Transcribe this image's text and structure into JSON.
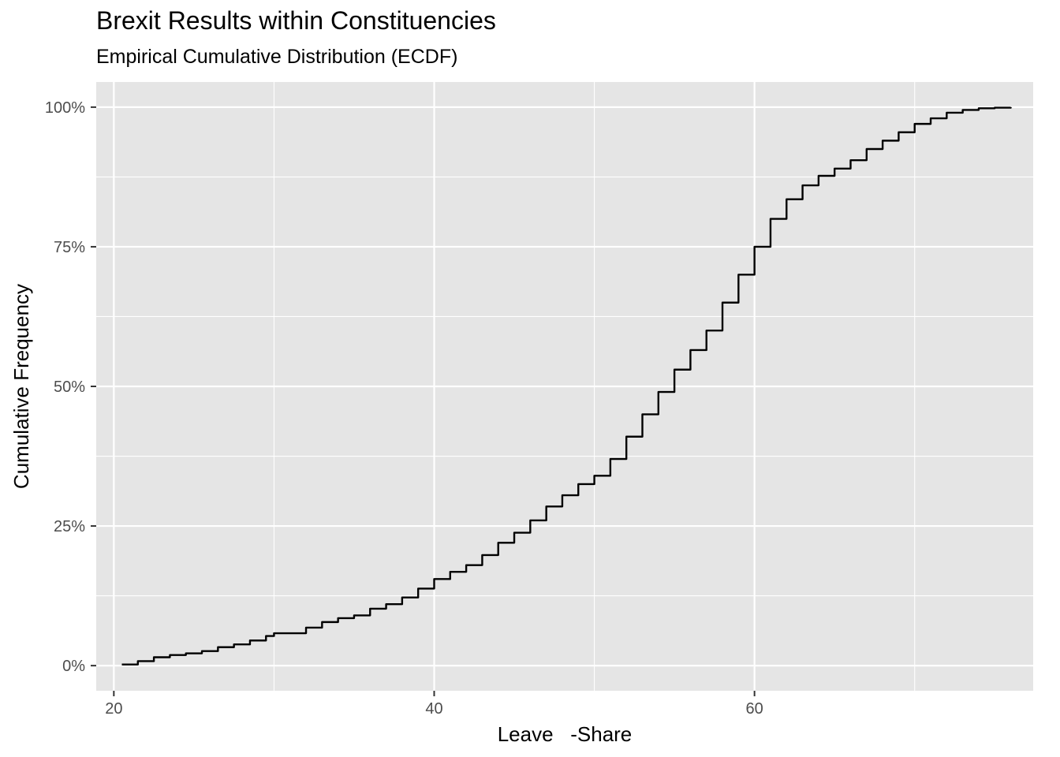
{
  "chart_data": {
    "type": "line",
    "subtype": "ecdf",
    "title": "Brexit Results within Constituencies",
    "subtitle": "Empirical Cumulative Distribution (ECDF)",
    "xlabel": "Leave   -Share",
    "ylabel": "Cumulative Frequency",
    "xlim": [
      18.9,
      77.4
    ],
    "ylim": [
      -0.045,
      1.045
    ],
    "x_ticks": [
      20,
      40,
      60
    ],
    "x_tick_labels": [
      "20",
      "40",
      "60"
    ],
    "y_ticks": [
      0,
      0.25,
      0.5,
      0.75,
      1.0
    ],
    "y_tick_labels": [
      "0%",
      "25%",
      "50%",
      "75%",
      "100%"
    ],
    "grid": true,
    "colors": {
      "panel": "#e5e5e5",
      "grid": "#ffffff",
      "line": "#000000",
      "tick_text": "#4d4d4d"
    },
    "series": [
      {
        "x": [
          20.5,
          21.5,
          22.5,
          23.5,
          24.5,
          25.5,
          26.5,
          27.5,
          28.5,
          29.5,
          30.0,
          31.0,
          32.0,
          33.0,
          34.0,
          35.0,
          36.0,
          37.0,
          38.0,
          39.0,
          40.0,
          41.0,
          42.0,
          43.0,
          44.0,
          45.0,
          46.0,
          47.0,
          48.0,
          49.0,
          50.0,
          51.0,
          52.0,
          53.0,
          54.0,
          55.0,
          56.0,
          57.0,
          58.0,
          59.0,
          60.0,
          61.0,
          62.0,
          63.0,
          64.0,
          65.0,
          66.0,
          67.0,
          68.0,
          69.0,
          70.0,
          71.0,
          72.0,
          73.0,
          74.0,
          75.0,
          76.0
        ],
        "y": [
          0.002,
          0.008,
          0.015,
          0.019,
          0.022,
          0.026,
          0.033,
          0.038,
          0.045,
          0.053,
          0.058,
          0.058,
          0.068,
          0.078,
          0.085,
          0.09,
          0.102,
          0.11,
          0.122,
          0.138,
          0.155,
          0.168,
          0.18,
          0.198,
          0.22,
          0.238,
          0.26,
          0.285,
          0.305,
          0.325,
          0.34,
          0.37,
          0.41,
          0.45,
          0.49,
          0.53,
          0.565,
          0.6,
          0.65,
          0.7,
          0.75,
          0.8,
          0.835,
          0.86,
          0.877,
          0.89,
          0.905,
          0.925,
          0.94,
          0.955,
          0.97,
          0.98,
          0.99,
          0.995,
          0.998,
          0.999,
          1.0
        ]
      }
    ]
  }
}
